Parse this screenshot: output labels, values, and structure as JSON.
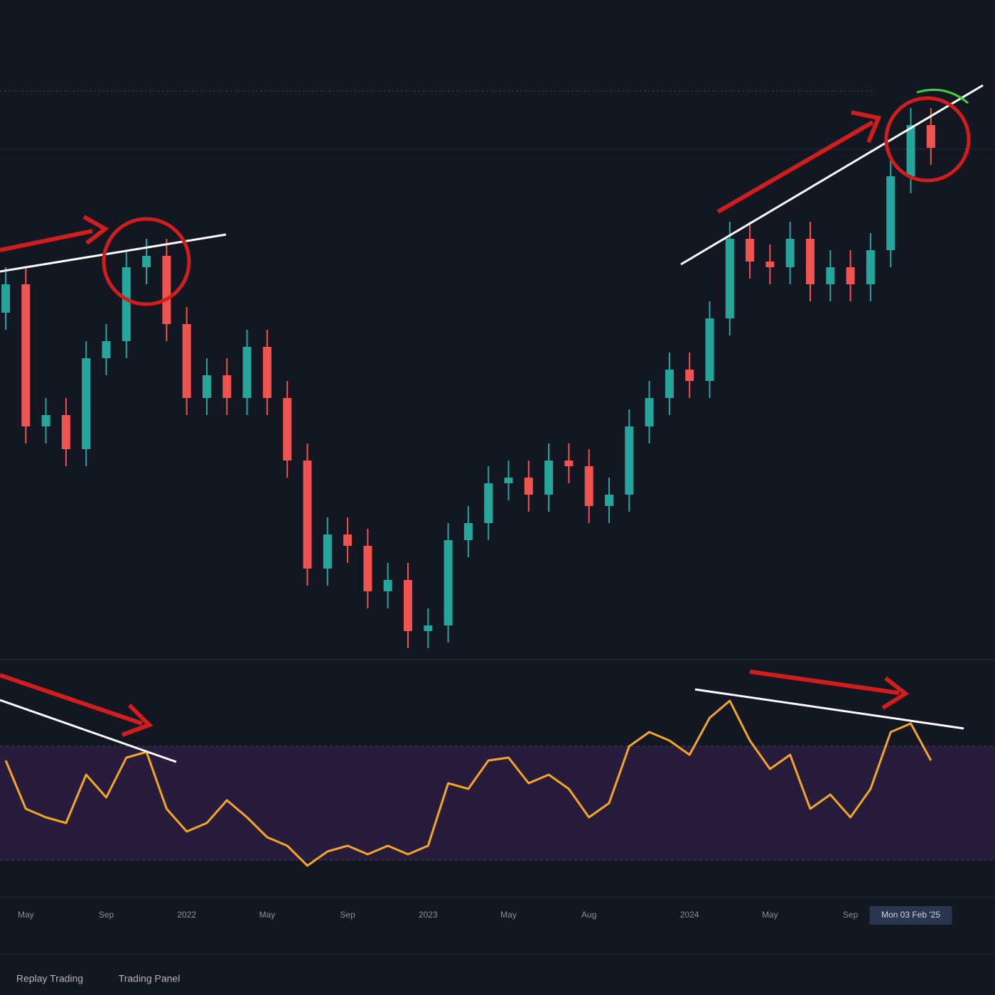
{
  "chart_data": {
    "type": "candlestick",
    "categories": [
      null,
      "May",
      null,
      null,
      null,
      "Sep",
      null,
      null,
      null,
      "2022",
      null,
      null,
      null,
      "May",
      null,
      null,
      null,
      "Sep",
      null,
      null,
      null,
      "2023",
      null,
      null,
      null,
      "May",
      null,
      null,
      null,
      "Aug",
      null,
      null,
      null,
      null,
      "2024",
      null,
      null,
      null,
      "May",
      null,
      null,
      null,
      "Sep",
      null,
      null,
      "Mon 03 Feb '25",
      null
    ],
    "open": [
      60,
      65,
      40,
      42,
      36,
      52,
      55,
      68,
      70,
      58,
      45,
      49,
      45,
      54,
      45,
      34,
      15,
      21,
      19,
      11,
      13,
      4,
      5,
      20,
      23,
      30,
      31,
      28,
      34,
      33,
      26,
      28,
      40,
      45,
      50,
      48,
      59,
      73,
      69,
      68,
      73,
      65,
      68,
      65,
      71,
      84,
      93
    ],
    "high": [
      68,
      68,
      45,
      45,
      55,
      58,
      71,
      73,
      73,
      61,
      52,
      52,
      57,
      57,
      48,
      37,
      24,
      24,
      22,
      16,
      16,
      8,
      23,
      26,
      33,
      34,
      34,
      37,
      37,
      36,
      31,
      43,
      48,
      53,
      53,
      62,
      76,
      76,
      72,
      76,
      76,
      71,
      71,
      74,
      87,
      96,
      96
    ],
    "low": [
      57,
      37,
      37,
      33,
      33,
      49,
      52,
      65,
      55,
      42,
      42,
      42,
      42,
      42,
      31,
      12,
      12,
      16,
      8,
      8,
      1,
      1,
      2,
      17,
      20,
      27,
      25,
      25,
      30,
      23,
      23,
      25,
      37,
      42,
      45,
      45,
      56,
      66,
      65,
      65,
      62,
      62,
      62,
      62,
      68,
      81,
      86
    ],
    "close": [
      65,
      40,
      42,
      36,
      52,
      55,
      68,
      70,
      58,
      45,
      49,
      45,
      54,
      45,
      34,
      15,
      21,
      19,
      11,
      13,
      4,
      5,
      20,
      23,
      30,
      31,
      28,
      34,
      33,
      26,
      28,
      40,
      45,
      50,
      48,
      59,
      73,
      69,
      68,
      73,
      65,
      68,
      65,
      71,
      84,
      93,
      89
    ],
    "up_color": "#26a69a",
    "down_color": "#ef5350",
    "ylim": [
      0,
      100
    ],
    "rsi": {
      "values": [
        65,
        48,
        45,
        43,
        60,
        52,
        66,
        68,
        48,
        40,
        43,
        51,
        45,
        38,
        35,
        28,
        33,
        35,
        32,
        35,
        32,
        35,
        57,
        55,
        65,
        66,
        57,
        60,
        55,
        45,
        50,
        70,
        75,
        72,
        67,
        80,
        86,
        72,
        62,
        67,
        48,
        53,
        45,
        55,
        75,
        78,
        65
      ],
      "color": "#f5a623",
      "ylim": [
        20,
        100
      ],
      "band": [
        30,
        70
      ]
    },
    "toolbar": [
      "Replay Trading",
      "Trading Panel"
    ]
  }
}
